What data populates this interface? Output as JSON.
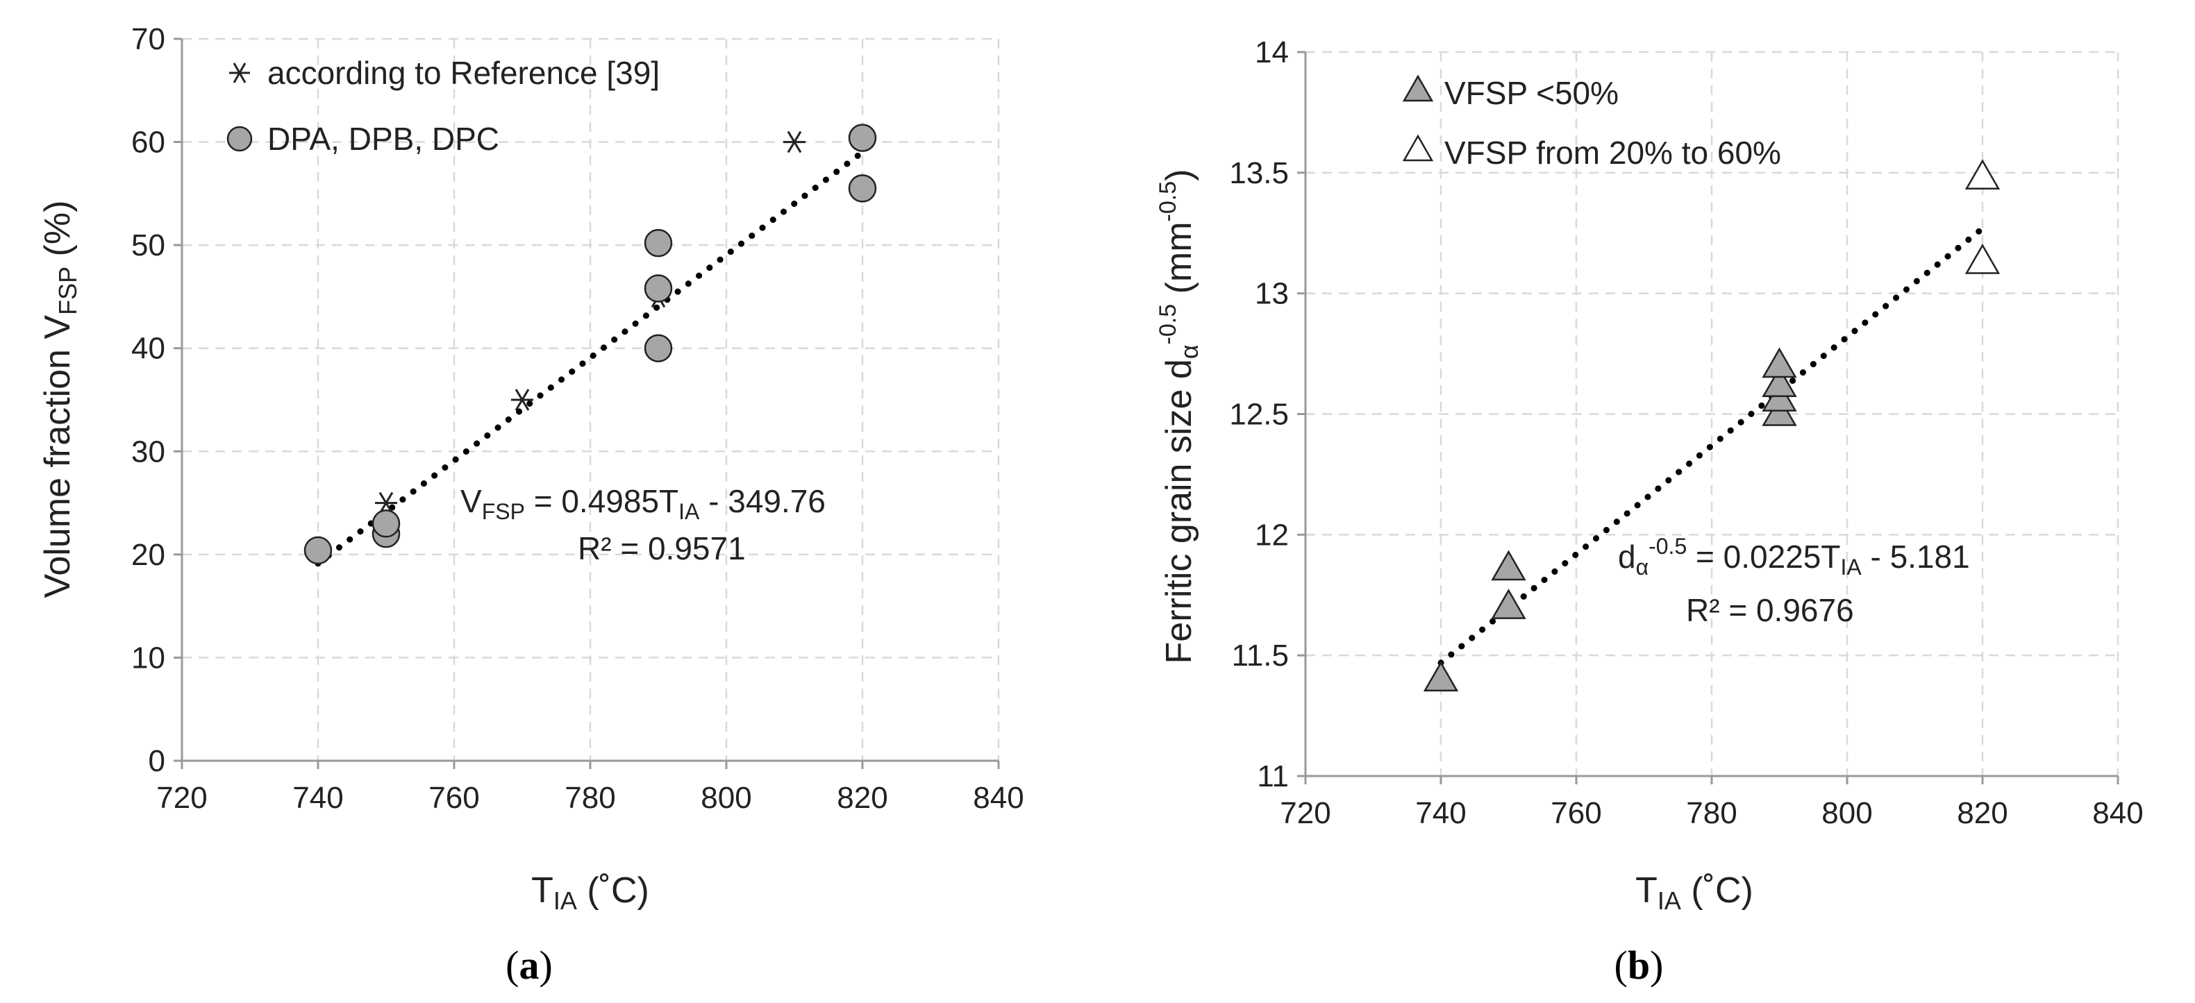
{
  "colors": {
    "grid": "#d9d9d9",
    "axis": "#999999",
    "marker_fill": "#a6a6a6",
    "marker_stroke": "#222222",
    "open_fill": "#ffffff",
    "trend": "#000000"
  },
  "chart_data": [
    {
      "type": "scatter",
      "panel": "a",
      "panel_label": {
        "open": "(",
        "letter": "a",
        "close": ")"
      },
      "xlabel": {
        "main": "T",
        "sub": "IA",
        "suffix": " (˚C)"
      },
      "ylabel": {
        "main": "Volume fraction V",
        "sub": "FSP",
        "suffix": "  (%)"
      },
      "xlim": [
        720,
        840
      ],
      "ylim": [
        0,
        70
      ],
      "xticks": [
        720,
        740,
        760,
        780,
        800,
        820,
        840
      ],
      "yticks": [
        0,
        10,
        20,
        30,
        40,
        50,
        60,
        70
      ],
      "grid": true,
      "legend_position": "top-left",
      "series": [
        {
          "name": "according to Reference [39]",
          "marker": "asterisk",
          "points": [
            [
              750,
              25
            ],
            [
              770,
              35
            ],
            [
              790,
              45
            ],
            [
              810,
              60
            ]
          ]
        },
        {
          "name": "DPA, DPB, DPC",
          "marker": "circle",
          "points": [
            [
              740,
              20.4
            ],
            [
              750,
              22
            ],
            [
              750,
              23
            ],
            [
              790,
              40
            ],
            [
              790,
              45.8
            ],
            [
              790,
              50.2
            ],
            [
              820,
              55.5
            ],
            [
              820,
              60.4
            ]
          ]
        }
      ],
      "trendline": {
        "slope": 0.4985,
        "intercept": -349.76,
        "x_range": [
          740,
          820
        ],
        "equation": {
          "lhs_main": "V",
          "lhs_sub": "FSP",
          "mid": " = 0.4985T",
          "mid_sub": "IA",
          "rhs": " - 349.76"
        },
        "r2_label": "R² = 0.9571"
      }
    },
    {
      "type": "scatter",
      "panel": "b",
      "panel_label": {
        "open": "(",
        "letter": "b",
        "close": ")"
      },
      "xlabel": {
        "main": "T",
        "sub": "IA",
        "suffix": "  (˚C)"
      },
      "ylabel": {
        "main": "Ferritic grain size d",
        "sub": "α",
        "sup": "-0.5",
        "suffix": "  (mm",
        "unit_sup": "-0.5",
        "close": ")"
      },
      "xlim": [
        720,
        840
      ],
      "ylim": [
        11,
        14
      ],
      "xticks": [
        720,
        740,
        760,
        780,
        800,
        820,
        840
      ],
      "yticks": [
        11,
        11.5,
        12,
        12.5,
        13,
        13.5,
        14
      ],
      "grid": true,
      "legend_position": "top-left",
      "series": [
        {
          "name": "VFSP <50%",
          "marker": "triangle-filled",
          "points": [
            [
              740,
              11.4
            ],
            [
              750,
              11.7
            ],
            [
              750,
              11.86
            ],
            [
              790,
              12.5
            ],
            [
              790,
              12.56
            ],
            [
              790,
              12.62
            ],
            [
              790,
              12.7
            ]
          ]
        },
        {
          "name": "VFSP from 20% to 60%",
          "marker": "triangle-open",
          "points": [
            [
              820,
              13.13
            ],
            [
              820,
              13.48
            ]
          ]
        }
      ],
      "trendline": {
        "slope": 0.0225,
        "intercept": -5.181,
        "x_range": [
          740,
          820
        ],
        "equation": {
          "lhs_main": "d",
          "lhs_sub": "α",
          "lhs_sup": "-0.5",
          "mid": " = 0.0225T",
          "mid_sub": "IA",
          "rhs": " - 5.181"
        },
        "r2_label": "R² = 0.9676"
      }
    }
  ]
}
